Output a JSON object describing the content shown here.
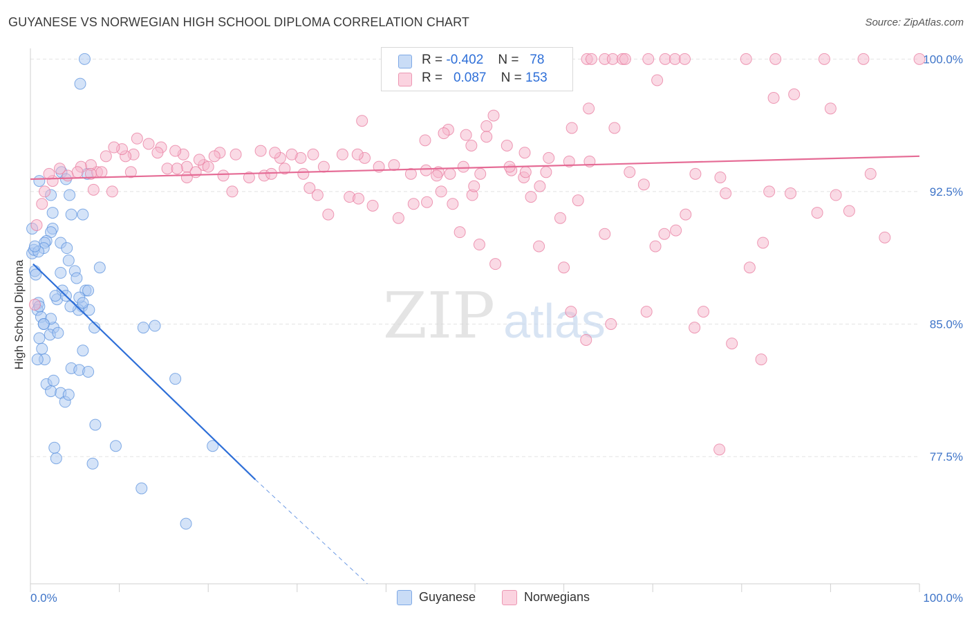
{
  "title": "GUYANESE VS NORWEGIAN HIGH SCHOOL DIPLOMA CORRELATION CHART",
  "source": "Source: ZipAtlas.com",
  "watermark": {
    "zip": "ZIP",
    "atlas": "atlas"
  },
  "legend": {
    "rows": [
      {
        "r_label": "R =",
        "r_value": "-0.402",
        "n_label": "N =",
        "n_value": "78",
        "color": "#a9c8f2"
      },
      {
        "r_label": "R =",
        "r_value": "0.087",
        "n_label": "N =",
        "n_value": "153",
        "color": "#f6b6cb"
      }
    ]
  },
  "bottom_legend": [
    {
      "label": "Guyanese",
      "color": "#a9c8f2"
    },
    {
      "label": "Norwegians",
      "color": "#f6b6cb"
    }
  ],
  "chart_data": {
    "type": "scatter",
    "title": "GUYANESE VS NORWEGIAN HIGH SCHOOL DIPLOMA CORRELATION CHART",
    "xlabel": "",
    "ylabel": "High School Diploma",
    "xlim": [
      0,
      100
    ],
    "ylim": [
      70.3,
      100.6
    ],
    "x_tick_labels": [
      "0.0%",
      "100.0%"
    ],
    "y_ticks": [
      100.0,
      92.5,
      85.0,
      77.5
    ],
    "y_tick_labels": [
      "100.0%",
      "92.5%",
      "85.0%",
      "77.5%"
    ],
    "grid": true,
    "legend_position": "top-center",
    "series": [
      {
        "name": "Guyanese",
        "color": "#a9c8f2",
        "stroke": "#5b92de",
        "trend": {
          "x0": 0.3,
          "y0": 88.4,
          "x1": 25.3,
          "y1": 76.2,
          "dash_to_x": 37.9,
          "dash_to_y": 70.3,
          "color": "#2e6fd8"
        },
        "points": [
          [
            6.1,
            100.0
          ],
          [
            5.6,
            98.6
          ],
          [
            0.2,
            90.4
          ],
          [
            0.2,
            89.0
          ],
          [
            0.4,
            89.2
          ],
          [
            0.5,
            88.0
          ],
          [
            0.6,
            87.8
          ],
          [
            0.9,
            86.2
          ],
          [
            0.8,
            85.8
          ],
          [
            1.2,
            85.4
          ],
          [
            1.5,
            85.0
          ],
          [
            1.0,
            84.2
          ],
          [
            1.3,
            83.6
          ],
          [
            1.6,
            83.0
          ],
          [
            1.8,
            81.6
          ],
          [
            2.3,
            81.2
          ],
          [
            2.6,
            81.8
          ],
          [
            2.9,
            77.4
          ],
          [
            2.7,
            78.0
          ],
          [
            3.0,
            86.4
          ],
          [
            2.6,
            84.8
          ],
          [
            2.2,
            84.4
          ],
          [
            3.4,
            81.1
          ],
          [
            3.9,
            80.6
          ],
          [
            4.3,
            81.0
          ],
          [
            4.6,
            82.5
          ],
          [
            5.5,
            82.4
          ],
          [
            6.5,
            82.3
          ],
          [
            5.9,
            83.5
          ],
          [
            6.2,
            86.9
          ],
          [
            5.8,
            86.0
          ],
          [
            5.4,
            85.8
          ],
          [
            6.6,
            85.8
          ],
          [
            7.2,
            84.8
          ],
          [
            7.3,
            79.3
          ],
          [
            9.6,
            78.1
          ],
          [
            7.0,
            77.1
          ],
          [
            12.5,
            75.7
          ],
          [
            12.7,
            84.8
          ],
          [
            14.0,
            84.9
          ],
          [
            16.3,
            81.9
          ],
          [
            17.5,
            73.7
          ],
          [
            20.5,
            78.1
          ],
          [
            1.0,
            93.1
          ],
          [
            2.3,
            92.3
          ],
          [
            3.5,
            93.6
          ],
          [
            4.0,
            93.2
          ],
          [
            6.4,
            93.5
          ],
          [
            4.4,
            92.3
          ],
          [
            2.5,
            91.3
          ],
          [
            5.9,
            91.2
          ],
          [
            4.6,
            91.2
          ],
          [
            2.5,
            90.4
          ],
          [
            2.3,
            90.2
          ],
          [
            1.8,
            89.7
          ],
          [
            1.6,
            89.6
          ],
          [
            3.4,
            89.6
          ],
          [
            1.5,
            89.3
          ],
          [
            0.9,
            89.1
          ],
          [
            4.1,
            89.3
          ],
          [
            4.3,
            88.6
          ],
          [
            5.0,
            88.0
          ],
          [
            3.4,
            87.9
          ],
          [
            5.2,
            87.6
          ],
          [
            7.8,
            88.2
          ],
          [
            3.6,
            86.9
          ],
          [
            6.5,
            86.9
          ],
          [
            2.8,
            86.6
          ],
          [
            4.0,
            86.6
          ],
          [
            5.5,
            86.5
          ],
          [
            4.5,
            86.0
          ],
          [
            5.9,
            86.2
          ],
          [
            2.3,
            85.3
          ],
          [
            3.1,
            84.5
          ],
          [
            1.5,
            85.0
          ],
          [
            1.0,
            86.0
          ],
          [
            0.5,
            89.4
          ],
          [
            0.8,
            83.0
          ]
        ]
      },
      {
        "name": "Norwegians",
        "color": "#f6b6cb",
        "stroke": "#e8799d",
        "trend": {
          "x0": 0.0,
          "y0": 93.2,
          "x1": 100.0,
          "y1": 94.5,
          "color": "#e56b95"
        },
        "points": [
          [
            60.2,
            100.0
          ],
          [
            62.6,
            100.0
          ],
          [
            63.1,
            100.0
          ],
          [
            64.6,
            100.0
          ],
          [
            65.5,
            100.0
          ],
          [
            66.6,
            100.0
          ],
          [
            66.9,
            100.0
          ],
          [
            69.5,
            100.0
          ],
          [
            71.4,
            100.0
          ],
          [
            72.5,
            100.0
          ],
          [
            73.6,
            100.0
          ],
          [
            80.5,
            100.0
          ],
          [
            83.8,
            100.0
          ],
          [
            89.3,
            100.0
          ],
          [
            93.7,
            100.0
          ],
          [
            100.0,
            100.0
          ],
          [
            70.5,
            98.8
          ],
          [
            83.6,
            97.8
          ],
          [
            85.9,
            98.0
          ],
          [
            90.0,
            97.2
          ],
          [
            62.8,
            97.2
          ],
          [
            52.1,
            96.8
          ],
          [
            51.3,
            96.2
          ],
          [
            60.9,
            96.1
          ],
          [
            65.7,
            96.1
          ],
          [
            37.3,
            96.5
          ],
          [
            47.0,
            96.0
          ],
          [
            44.4,
            95.4
          ],
          [
            49.6,
            95.1
          ],
          [
            46.5,
            95.8
          ],
          [
            49.0,
            95.7
          ],
          [
            51.3,
            95.6
          ],
          [
            53.6,
            95.1
          ],
          [
            55.6,
            94.7
          ],
          [
            58.3,
            94.4
          ],
          [
            62.9,
            94.2
          ],
          [
            60.6,
            94.2
          ],
          [
            58.0,
            93.6
          ],
          [
            55.5,
            93.3
          ],
          [
            54.1,
            93.7
          ],
          [
            53.9,
            93.9
          ],
          [
            50.6,
            93.5
          ],
          [
            45.9,
            93.6
          ],
          [
            42.8,
            93.5
          ],
          [
            44.5,
            93.7
          ],
          [
            45.7,
            93.4
          ],
          [
            48.7,
            93.9
          ],
          [
            49.7,
            92.3
          ],
          [
            49.9,
            92.8
          ],
          [
            47.2,
            93.5
          ],
          [
            40.9,
            94.0
          ],
          [
            39.2,
            93.9
          ],
          [
            37.6,
            94.4
          ],
          [
            36.8,
            94.6
          ],
          [
            35.1,
            94.6
          ],
          [
            33.0,
            93.9
          ],
          [
            31.8,
            94.6
          ],
          [
            30.4,
            94.4
          ],
          [
            29.4,
            94.6
          ],
          [
            28.1,
            94.4
          ],
          [
            27.5,
            94.7
          ],
          [
            25.9,
            94.8
          ],
          [
            23.1,
            94.6
          ],
          [
            21.3,
            94.7
          ],
          [
            20.7,
            94.5
          ],
          [
            19.5,
            94.0
          ],
          [
            19.0,
            94.3
          ],
          [
            17.6,
            93.9
          ],
          [
            17.2,
            94.6
          ],
          [
            16.3,
            94.8
          ],
          [
            15.4,
            93.8
          ],
          [
            14.7,
            95.0
          ],
          [
            13.3,
            95.2
          ],
          [
            12.0,
            95.5
          ],
          [
            11.6,
            94.6
          ],
          [
            10.7,
            94.5
          ],
          [
            10.3,
            94.9
          ],
          [
            9.4,
            95.0
          ],
          [
            8.5,
            94.5
          ],
          [
            7.5,
            93.6
          ],
          [
            6.8,
            94.0
          ],
          [
            5.7,
            93.9
          ],
          [
            5.3,
            93.6
          ],
          [
            4.2,
            93.4
          ],
          [
            3.3,
            93.8
          ],
          [
            2.5,
            93.1
          ],
          [
            2.1,
            93.5
          ],
          [
            1.6,
            92.5
          ],
          [
            1.3,
            91.8
          ],
          [
            0.7,
            90.6
          ],
          [
            0.5,
            86.1
          ],
          [
            6.8,
            93.5
          ],
          [
            7.1,
            92.6
          ],
          [
            8.0,
            93.6
          ],
          [
            9.2,
            92.5
          ],
          [
            11.3,
            93.6
          ],
          [
            14.3,
            94.7
          ],
          [
            16.5,
            93.8
          ],
          [
            17.6,
            93.3
          ],
          [
            18.6,
            93.6
          ],
          [
            20.0,
            93.9
          ],
          [
            21.7,
            93.4
          ],
          [
            22.7,
            92.5
          ],
          [
            24.6,
            93.3
          ],
          [
            26.3,
            93.4
          ],
          [
            27.1,
            93.5
          ],
          [
            28.6,
            93.8
          ],
          [
            30.7,
            93.5
          ],
          [
            31.4,
            92.7
          ],
          [
            32.3,
            92.3
          ],
          [
            33.5,
            91.2
          ],
          [
            35.9,
            92.2
          ],
          [
            36.9,
            92.1
          ],
          [
            38.5,
            91.7
          ],
          [
            41.4,
            91.0
          ],
          [
            43.1,
            91.8
          ],
          [
            44.6,
            91.9
          ],
          [
            46.2,
            92.5
          ],
          [
            47.5,
            91.8
          ],
          [
            48.3,
            90.2
          ],
          [
            50.5,
            89.5
          ],
          [
            52.3,
            88.4
          ],
          [
            55.7,
            93.6
          ],
          [
            56.3,
            92.2
          ],
          [
            57.3,
            92.8
          ],
          [
            57.2,
            89.4
          ],
          [
            59.6,
            91.0
          ],
          [
            60.0,
            88.2
          ],
          [
            61.6,
            92.0
          ],
          [
            64.6,
            90.1
          ],
          [
            67.4,
            93.6
          ],
          [
            69.0,
            92.9
          ],
          [
            70.3,
            89.4
          ],
          [
            71.3,
            90.1
          ],
          [
            72.6,
            90.3
          ],
          [
            73.7,
            91.2
          ],
          [
            74.8,
            93.5
          ],
          [
            77.6,
            93.3
          ],
          [
            78.2,
            92.4
          ],
          [
            80.9,
            88.2
          ],
          [
            82.4,
            89.6
          ],
          [
            83.1,
            92.5
          ],
          [
            85.5,
            92.4
          ],
          [
            88.5,
            91.3
          ],
          [
            90.6,
            92.3
          ],
          [
            92.1,
            91.4
          ],
          [
            94.5,
            93.5
          ],
          [
            96.1,
            89.9
          ],
          [
            75.7,
            85.7
          ],
          [
            78.9,
            83.9
          ],
          [
            82.2,
            83.0
          ],
          [
            77.5,
            77.9
          ],
          [
            60.8,
            85.7
          ],
          [
            65.3,
            85.0
          ],
          [
            62.5,
            84.1
          ],
          [
            69.3,
            85.7
          ],
          [
            74.7,
            84.8
          ]
        ]
      }
    ]
  }
}
